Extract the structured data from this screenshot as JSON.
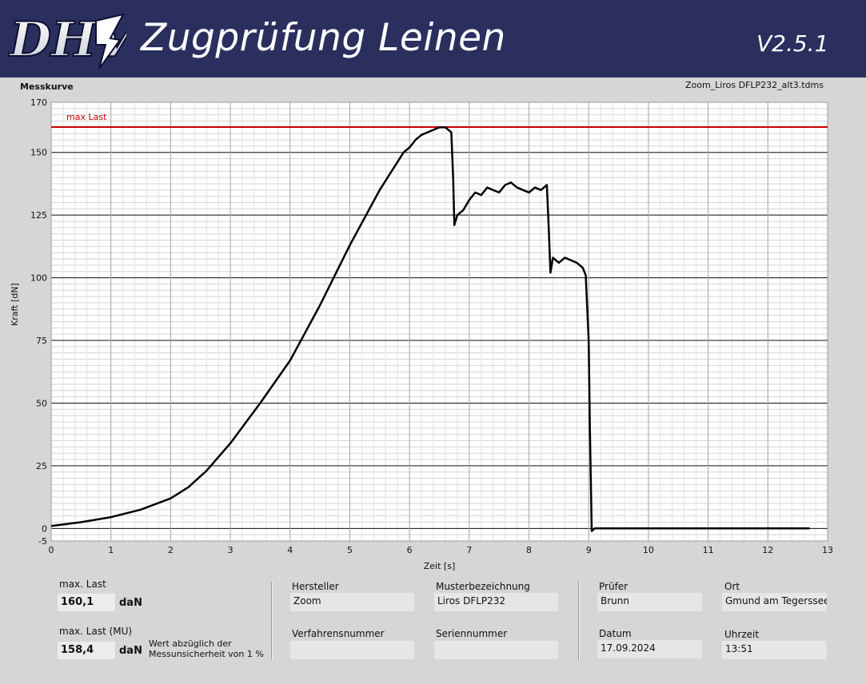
{
  "header": {
    "logo_text": "DHV",
    "title": "Zugprüfung Leinen",
    "version": "V2.5.1",
    "background_color": "#2b2f5e"
  },
  "graph": {
    "section_title": "Messkurve",
    "file_name": "Zoom_Liros DFLP232_alt3.tdms"
  },
  "chart_data": {
    "type": "line",
    "xlabel": "Zeit [s]",
    "ylabel": "Kraft [dN]",
    "xlim": [
      0,
      13
    ],
    "ylim": [
      -5,
      170
    ],
    "x_ticks": [
      "0",
      "1",
      "2",
      "3",
      "4",
      "5",
      "6",
      "7",
      "8",
      "9",
      "10",
      "11",
      "12",
      "13"
    ],
    "y_ticks": [
      "-5",
      "0",
      "25",
      "50",
      "75",
      "100",
      "125",
      "150",
      "170"
    ],
    "grid": true,
    "reference_line": {
      "label": "max Last",
      "value": 160.1,
      "color": "#cc0000"
    },
    "series": [
      {
        "color": "#000000",
        "x": [
          0,
          0.5,
          1,
          1.5,
          2,
          2.3,
          2.6,
          3,
          3.5,
          4,
          4.5,
          5,
          5.5,
          5.9,
          6.0,
          6.1,
          6.2,
          6.3,
          6.4,
          6.5,
          6.6,
          6.7,
          6.73,
          6.75,
          6.8,
          6.9,
          7.0,
          7.1,
          7.2,
          7.3,
          7.4,
          7.5,
          7.6,
          7.7,
          7.8,
          7.9,
          8.0,
          8.1,
          8.2,
          8.3,
          8.33,
          8.36,
          8.4,
          8.5,
          8.6,
          8.7,
          8.8,
          8.9,
          8.95,
          9.0,
          9.02,
          9.05,
          9.1,
          9.5,
          10,
          10.5,
          11,
          11.5,
          12,
          12.5,
          12.7
        ],
        "y": [
          1,
          2.5,
          4.5,
          7.5,
          12,
          16.5,
          23,
          34,
          50,
          67,
          89,
          113,
          135,
          150,
          152,
          155,
          157,
          158,
          159,
          160,
          160,
          158,
          140,
          121,
          125,
          127,
          131,
          134,
          133,
          136,
          135,
          134,
          137,
          138,
          136,
          135,
          134,
          136,
          135,
          137,
          120,
          102,
          108,
          106,
          108,
          107,
          106,
          104,
          101,
          75,
          40,
          -1,
          0,
          0,
          0,
          0,
          0,
          0,
          0,
          0,
          0
        ]
      }
    ]
  },
  "results": {
    "max_last_label": "max. Last",
    "max_last_value": "160,1",
    "max_last_unit": "daN",
    "max_last_mu_label": "max. Last (MU)",
    "max_last_mu_value": "158,4",
    "max_last_mu_unit": "daN",
    "mu_note_line1": "Wert abzüglich der",
    "mu_note_line2": "Messunsicherheit von 1 %"
  },
  "sample": {
    "hersteller_label": "Hersteller",
    "hersteller_value": "Zoom",
    "musterbezeichnung_label": "Musterbezeichnung",
    "musterbezeichnung_value": "Liros DFLP232",
    "verfahrensnummer_label": "Verfahrensnummer",
    "verfahrensnummer_value": "",
    "seriennummer_label": "Seriennummer",
    "seriennummer_value": ""
  },
  "test_info": {
    "pruefer_label": "Prüfer",
    "pruefer_value": "Brunn",
    "ort_label": "Ort",
    "ort_value": "Gmund am Tegerssee",
    "datum_label": "Datum",
    "datum_value": "17.09.2024",
    "uhrzeit_label": "Uhrzeit",
    "uhrzeit_value": "13:51"
  }
}
